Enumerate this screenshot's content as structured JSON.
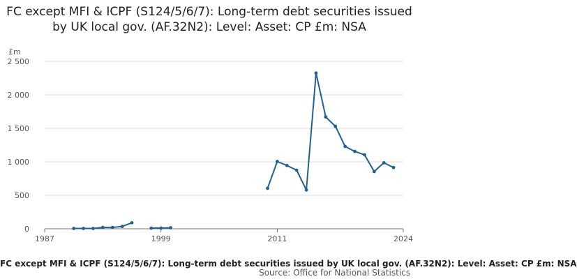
{
  "chart_data": {
    "type": "line",
    "title": "FC except MFI & ICPF (S124/5/6/7): Long-term debt securities issued by UK local gov. (AF.32N2): Level: Asset: CP £m: NSA",
    "ylabel": "£m",
    "xlabel": "",
    "ylim": [
      0,
      2500
    ],
    "xlim": [
      1987,
      2024
    ],
    "y_ticks": [
      0,
      500,
      1000,
      1500,
      2000,
      2500
    ],
    "y_tick_labels": [
      "0",
      "500",
      "1 000",
      "1 500",
      "2 000",
      "2 500"
    ],
    "x_ticks": [
      1987,
      1999,
      2011,
      2024
    ],
    "x_tick_labels": [
      "1987",
      "1999",
      "2011",
      "2024"
    ],
    "grid": true,
    "color": "#206095",
    "series": [
      {
        "name": "",
        "points": [
          {
            "x": 1990,
            "y": 5
          },
          {
            "x": 1991,
            "y": 5
          },
          {
            "x": 1992,
            "y": 5
          },
          {
            "x": 1993,
            "y": 20
          },
          {
            "x": 1994,
            "y": 20
          },
          {
            "x": 1995,
            "y": 35
          },
          {
            "x": 1996,
            "y": 90
          },
          {
            "x": 1997,
            "y": null
          },
          {
            "x": 1998,
            "y": 10
          },
          {
            "x": 1999,
            "y": 10
          },
          {
            "x": 2000,
            "y": 15
          },
          {
            "x": 2010,
            "y": 605
          },
          {
            "x": 2011,
            "y": 1005
          },
          {
            "x": 2012,
            "y": 945
          },
          {
            "x": 2013,
            "y": 875
          },
          {
            "x": 2014,
            "y": 580
          },
          {
            "x": 2015,
            "y": 2325
          },
          {
            "x": 2016,
            "y": 1670
          },
          {
            "x": 2017,
            "y": 1530
          },
          {
            "x": 2018,
            "y": 1230
          },
          {
            "x": 2019,
            "y": 1155
          },
          {
            "x": 2020,
            "y": 1105
          },
          {
            "x": 2021,
            "y": 855
          },
          {
            "x": 2022,
            "y": 985
          },
          {
            "x": 2023,
            "y": 915
          }
        ]
      }
    ]
  },
  "footer": {
    "caption": "FC except MFI & ICPF (S124/5/6/7): Long-term debt securities issued by UK local gov. (AF.32N2): Level: Asset: CP £m: NSA",
    "source": "Source: Office for National Statistics"
  }
}
